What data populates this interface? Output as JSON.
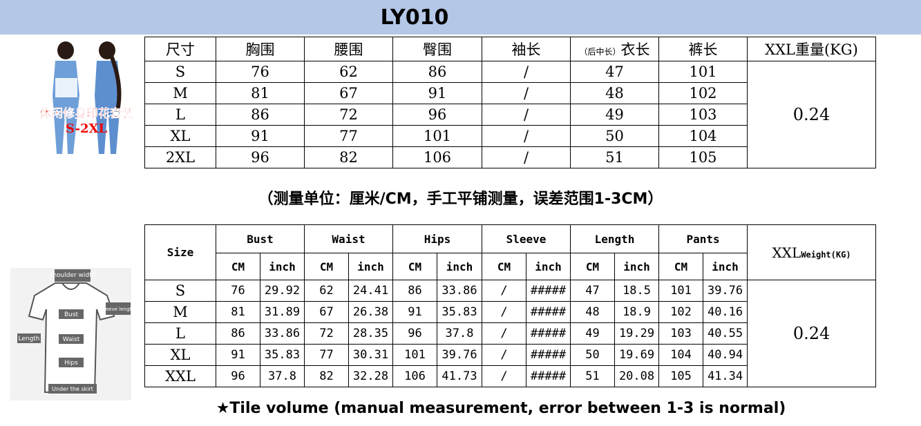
{
  "header": {
    "title": "LY010"
  },
  "product_image": {
    "caption": "休闲修身印花套装",
    "sizes": "S-2XL"
  },
  "cn_table": {
    "headers": [
      "尺寸",
      "胸围",
      "腰围",
      "臀围",
      "袖长",
      {
        "note": "（后中长）",
        "text": "衣长"
      },
      "裤长",
      "XXL重量(KG)"
    ],
    "rows": [
      [
        "S",
        "76",
        "62",
        "86",
        "/",
        "47",
        "101"
      ],
      [
        "M",
        "81",
        "67",
        "91",
        "/",
        "48",
        "102"
      ],
      [
        "L",
        "86",
        "72",
        "96",
        "/",
        "49",
        "103"
      ],
      [
        "XL",
        "91",
        "77",
        "101",
        "/",
        "50",
        "104"
      ],
      [
        "2XL",
        "96",
        "82",
        "106",
        "/",
        "51",
        "105"
      ]
    ],
    "weight": "0.24"
  },
  "note": "（测量单位：厘米/CM，手工平铺测量，误差范围1-3CM）",
  "diagram": {
    "labels": [
      "shoulder width",
      "Bust",
      "sleeve length",
      "Length",
      "Waist",
      "Hips",
      "Under the skirt"
    ]
  },
  "en_table": {
    "headers": [
      "Size",
      "Bust",
      "Waist",
      "Hips",
      "Sleeve",
      "Length",
      "Pants"
    ],
    "weight_header": {
      "main": "XXL",
      "sub": "Weight(KG)"
    },
    "subheaders": [
      "CM",
      "inch",
      "CM",
      "inch",
      "CM",
      "inch",
      "CM",
      "inch",
      "CM",
      "inch",
      "CM",
      "inch"
    ],
    "rows": [
      [
        "S",
        "76",
        "29.92",
        "62",
        "24.41",
        "86",
        "33.86",
        "/",
        "#####",
        "47",
        "18.5",
        "101",
        "39.76"
      ],
      [
        "M",
        "81",
        "31.89",
        "67",
        "26.38",
        "91",
        "35.83",
        "/",
        "#####",
        "48",
        "18.9",
        "102",
        "40.16"
      ],
      [
        "L",
        "86",
        "33.86",
        "72",
        "28.35",
        "96",
        "37.8",
        "/",
        "#####",
        "49",
        "19.29",
        "103",
        "40.55"
      ],
      [
        "XL",
        "91",
        "35.83",
        "77",
        "30.31",
        "101",
        "39.76",
        "/",
        "#####",
        "50",
        "19.69",
        "104",
        "40.94"
      ],
      [
        "XXL",
        "96",
        "37.8",
        "82",
        "32.28",
        "106",
        "41.73",
        "/",
        "#####",
        "51",
        "20.08",
        "105",
        "41.34"
      ]
    ],
    "weight": "0.24"
  },
  "footer": "★Tile volume (manual measurement, error between 1-3 is normal)"
}
